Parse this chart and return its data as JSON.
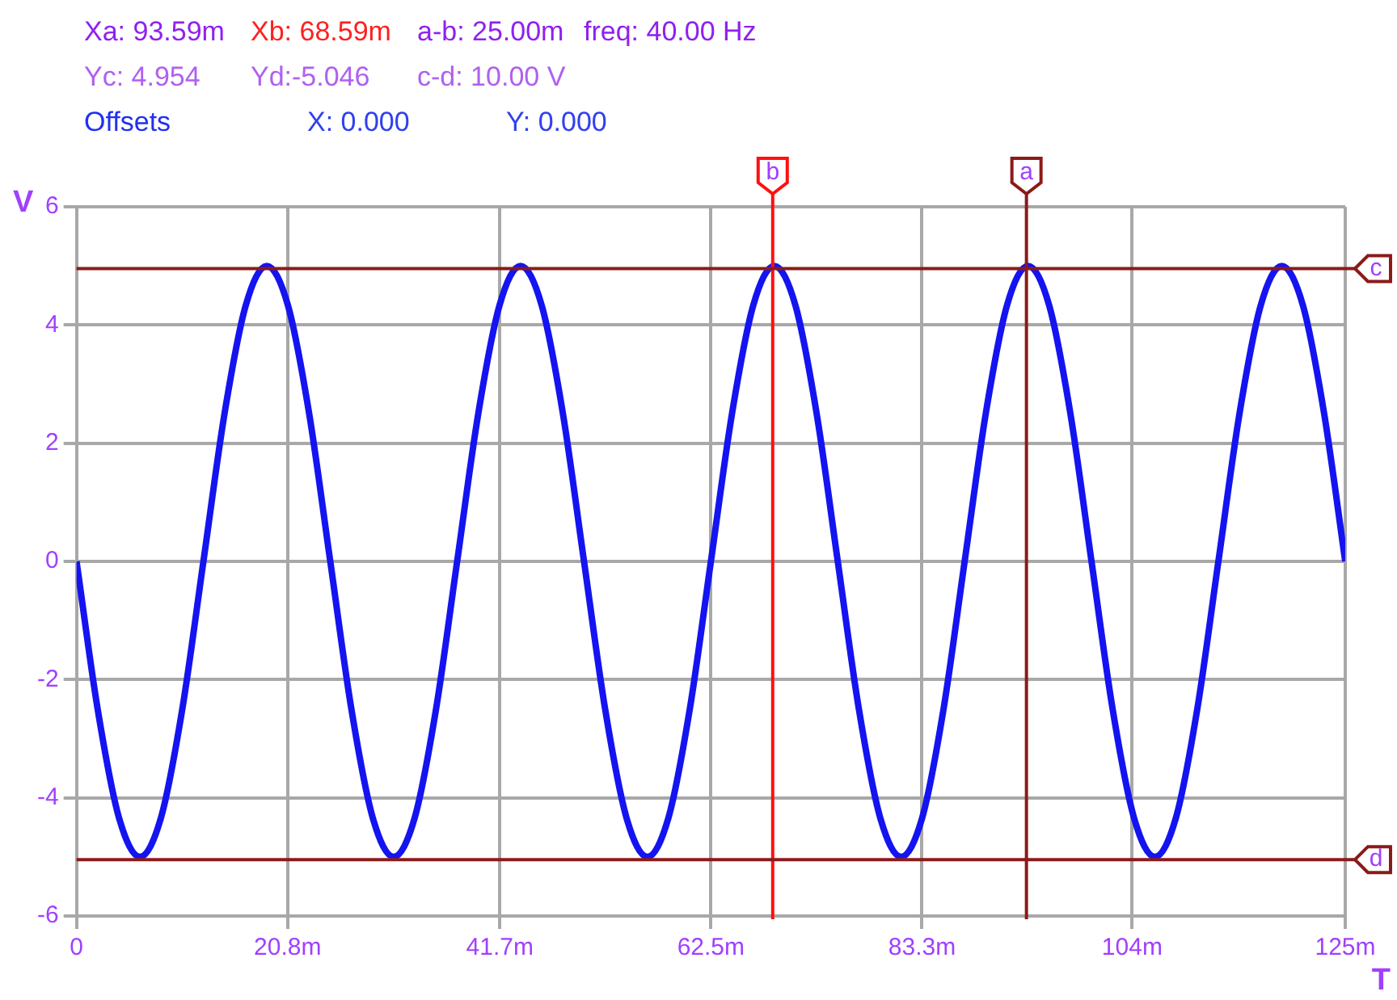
{
  "chart_data": {
    "type": "line",
    "xlabel": "T",
    "ylabel": "V",
    "annotations": [
      "Xa: 93.59m",
      "Xb: 68.59m",
      "a-b: 25.00m",
      "freq: 40.00 Hz",
      "Yc: 4.954",
      "Yd:-5.046",
      "c-d: 10.00 V",
      "Offsets",
      "X: 0.000",
      "Y: 0.000"
    ],
    "x": [
      0,
      2.08,
      4.17,
      6.25,
      8.33,
      10.42,
      12.5,
      14.58,
      16.67,
      18.75,
      20.83,
      22.92,
      25,
      27.08,
      29.17,
      31.25,
      33.33,
      35.42,
      37.5,
      39.58,
      41.67,
      43.75,
      45.83,
      47.92,
      50,
      52.08,
      54.17,
      56.25,
      58.33,
      60.42,
      62.5,
      64.58,
      66.67,
      68.75,
      70.83,
      72.92,
      75,
      77.08,
      79.17,
      81.25,
      83.33,
      85.42,
      87.5,
      89.58,
      91.67,
      93.75,
      95.83,
      97.92,
      100,
      102.08,
      104.17,
      106.25,
      108.33,
      110.42,
      112.5,
      114.58,
      116.67,
      118.75,
      120.83,
      122.92,
      125
    ],
    "series": [
      {
        "color": "#1414f0",
        "values": [
          0,
          -2.5,
          -4.33,
          -5,
          -4.33,
          -2.5,
          0,
          2.5,
          4.33,
          5,
          4.33,
          2.5,
          0,
          -2.5,
          -4.33,
          -5,
          -4.33,
          -2.5,
          0,
          2.5,
          4.33,
          5,
          4.33,
          2.5,
          0,
          -2.5,
          -4.33,
          -5,
          -4.33,
          -2.5,
          0,
          2.5,
          4.33,
          5,
          4.33,
          2.5,
          0,
          -2.5,
          -4.33,
          -5,
          -4.33,
          -2.5,
          0,
          2.5,
          4.33,
          5,
          4.33,
          2.5,
          0,
          -2.5,
          -4.33,
          -5,
          -4.33,
          -2.5,
          0,
          2.5,
          4.33,
          5,
          4.33,
          2.5,
          0
        ]
      }
    ],
    "xlim": [
      0,
      125
    ],
    "xticks": [
      0,
      {
        "value": 20.8,
        "label": "20.8m"
      },
      {
        "value": 41.7,
        "label": "41.7m"
      },
      {
        "value": 62.5,
        "label": "62.5m"
      },
      {
        "value": 83.3,
        "label": "83.3m"
      },
      {
        "value": 104,
        "label": "104m"
      },
      {
        "value": 125,
        "label": "125m"
      }
    ],
    "ylim": [
      -6,
      6
    ],
    "yticks": [
      -6,
      -4,
      -2,
      0,
      2,
      4,
      6
    ],
    "grid": true,
    "legend": false,
    "marker": "none",
    "line_style": "solid",
    "ref_lines": [
      {
        "axis": "x",
        "value": 93.59,
        "label": "a",
        "color": "#8b1a1a"
      },
      {
        "axis": "x",
        "value": 68.59,
        "label": "b",
        "color": "#ff1010"
      },
      {
        "axis": "y",
        "value": 4.954,
        "label": "c",
        "color": "#8b1a1a"
      },
      {
        "axis": "y",
        "value": -5.046,
        "label": "d",
        "color": "#8b1a1a"
      }
    ]
  }
}
